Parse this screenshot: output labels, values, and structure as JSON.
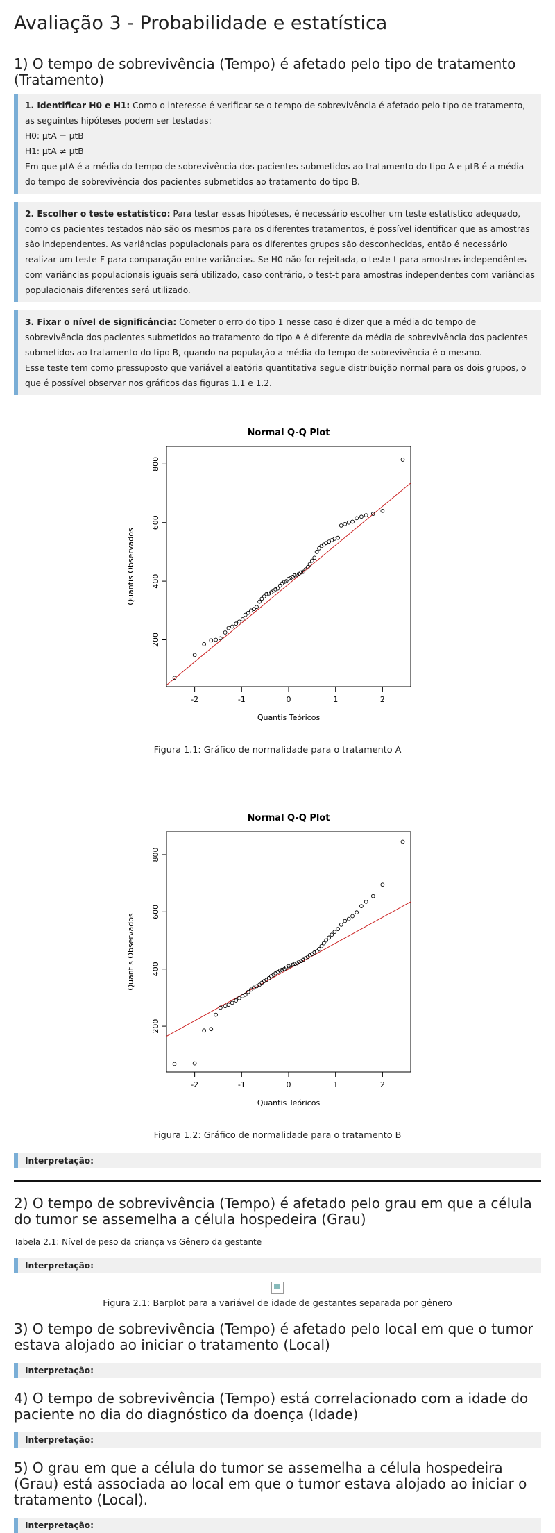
{
  "page_title": "Avaliação 3 - Probabilidade e estatística",
  "sections": {
    "s1": {
      "heading": "1) O tempo de sobrevivência (Tempo) é afetado pelo tipo de tratamento (Tratamento)",
      "box1": {
        "label": "1. Identificar H0 e H1:",
        "text1": " Como o interesse é verificar se o tempo de sobrevivência é afetado pelo tipo de tratamento, as seguintes hipóteses podem ser testadas:",
        "h0": "H0: μtA = μtB",
        "h1": "H1: μtA ≠ μtB",
        "text2": "Em que μtA é a média do tempo de sobrevivência dos pacientes submetidos ao tratamento do tipo A e μtB é a média do tempo de sobrevivência dos pacientes submetidos ao tratamento do tipo B."
      },
      "box2": {
        "label": "2. Escolher o teste estatístico:",
        "text": " Para testar essas hipóteses, é necessário escolher um teste estatístico adequado, como os pacientes testados não são os mesmos para os diferentes tratamentos, é possível identificar que as amostras são independentes. As variâncias populacionais para os diferentes grupos são desconhecidas, então é necessário realizar um teste-F para comparação entre variâncias. Se H0 não for rejeitada, o teste-t para amostras independêntes com variâncias populacionais iguais será utilizado, caso contrário, o test-t para amostras independentes com variâncias populacionais diferentes será utilizado."
      },
      "box3": {
        "label": "3. Fixar o nível de significância:",
        "text1": " Cometer o erro do tipo 1 nesse caso é dizer que a média do tempo de sobrevivência dos pacientes submetidos ao tratamento do tipo A é diferente da média de sobrevivência dos pacientes submetidos ao tratamento do tipo B, quando na população a média do tempo de sobrevivência é o mesmo.",
        "text2": "Esse teste tem como pressuposto que variável aleatória quantitativa segue distribuição normal para os dois grupos, o que é possível observar nos gráficos das figuras 1.1 e 1.2."
      },
      "fig1_caption": "Figura 1.1: Gráfico de normalidade para o tratamento A",
      "fig2_caption": "Figura 1.2: Gráfico de normalidade para o tratamento B",
      "interp": "Interpretação:"
    },
    "s2": {
      "heading": "2) O tempo de sobrevivência (Tempo) é afetado pelo grau em que a célula do tumor se assemelha a célula hospedeira (Grau)",
      "table_caption": "Tabela 2.1: Nível de peso da criança vs Gênero da gestante",
      "interp": "Interpretação:",
      "fig_caption": "Figura 2.1: Barplot para a variável de idade de gestantes separada por gênero"
    },
    "s3": {
      "heading": "3) O tempo de sobrevivência (Tempo) é afetado pelo local em que o tumor estava alojado ao iniciar o tratamento (Local)",
      "interp": "Interpretação:"
    },
    "s4": {
      "heading": "4) O tempo de sobrevivência (Tempo) está correlacionado com a idade do paciente no dia do diagnóstico da doença (Idade)",
      "interp": "Interpretação:"
    },
    "s5": {
      "heading": "5) O grau em que a célula do tumor se assemelha a célula hospedeira (Grau) está associada ao local em que o tumor estava alojado ao iniciar o tratamento (Local).",
      "interp": "Interpretação:"
    }
  },
  "colors": {
    "accent_bar": "#7aaed6",
    "box_bg": "#f0f0f0",
    "qq_line": "#cc2222"
  },
  "chart_data": [
    {
      "type": "scatter",
      "title": "Normal Q-Q Plot",
      "xlabel": "Quantis Teóricos",
      "ylabel": "Quantis Observados",
      "xlim": [
        -2.6,
        2.6
      ],
      "ylim": [
        40,
        860
      ],
      "x_ticks": [
        -2,
        -1,
        0,
        1,
        2
      ],
      "y_ticks": [
        200,
        400,
        600,
        800
      ],
      "x_tick_labels": [
        "-2",
        "-1",
        "0",
        "1",
        "2"
      ],
      "y_tick_labels": [
        "200",
        "400",
        "600",
        "800"
      ],
      "line": {
        "x": [
          -2.6,
          2.6
        ],
        "y": [
          45,
          735
        ]
      },
      "points": {
        "x": [
          -2.43,
          -2.0,
          -1.8,
          -1.65,
          -1.55,
          -1.45,
          -1.35,
          -1.28,
          -1.2,
          -1.12,
          -1.05,
          -0.98,
          -0.92,
          -0.86,
          -0.8,
          -0.74,
          -0.68,
          -0.62,
          -0.57,
          -0.52,
          -0.47,
          -0.42,
          -0.37,
          -0.32,
          -0.28,
          -0.23,
          -0.18,
          -0.14,
          -0.09,
          -0.05,
          0.0,
          0.04,
          0.09,
          0.13,
          0.18,
          0.22,
          0.27,
          0.31,
          0.36,
          0.41,
          0.45,
          0.5,
          0.55,
          0.6,
          0.65,
          0.7,
          0.75,
          0.8,
          0.86,
          0.92,
          0.98,
          1.05,
          1.12,
          1.2,
          1.28,
          1.36,
          1.45,
          1.55,
          1.65,
          1.8,
          2.0,
          2.43
        ],
        "y": [
          70,
          148,
          185,
          198,
          200,
          205,
          225,
          240,
          245,
          255,
          262,
          270,
          285,
          292,
          300,
          305,
          312,
          330,
          340,
          348,
          356,
          358,
          362,
          368,
          372,
          375,
          385,
          392,
          398,
          400,
          408,
          410,
          415,
          420,
          422,
          425,
          430,
          432,
          440,
          448,
          458,
          470,
          480,
          500,
          512,
          520,
          525,
          530,
          535,
          540,
          545,
          548,
          590,
          595,
          600,
          603,
          615,
          620,
          625,
          630,
          640,
          815
        ]
      },
      "caption": "Figura 1.1: Gráfico de normalidade para o tratamento A"
    },
    {
      "type": "scatter",
      "title": "Normal Q-Q Plot",
      "xlabel": "Quantis Teóricos",
      "ylabel": "Quantis Observados",
      "xlim": [
        -2.6,
        2.6
      ],
      "ylim": [
        40,
        880
      ],
      "x_ticks": [
        -2,
        -1,
        0,
        1,
        2
      ],
      "y_ticks": [
        200,
        400,
        600,
        800
      ],
      "x_tick_labels": [
        "-2",
        "-1",
        "0",
        "1",
        "2"
      ],
      "y_tick_labels": [
        "200",
        "400",
        "600",
        "800"
      ],
      "line": {
        "x": [
          -2.6,
          2.6
        ],
        "y": [
          165,
          635
        ]
      },
      "points": {
        "x": [
          -2.43,
          -2.0,
          -1.8,
          -1.65,
          -1.55,
          -1.45,
          -1.35,
          -1.28,
          -1.2,
          -1.12,
          -1.05,
          -0.98,
          -0.92,
          -0.86,
          -0.8,
          -0.74,
          -0.68,
          -0.62,
          -0.57,
          -0.52,
          -0.47,
          -0.42,
          -0.37,
          -0.32,
          -0.28,
          -0.23,
          -0.18,
          -0.14,
          -0.09,
          -0.05,
          0.0,
          0.04,
          0.09,
          0.13,
          0.18,
          0.22,
          0.27,
          0.31,
          0.36,
          0.41,
          0.45,
          0.5,
          0.55,
          0.6,
          0.65,
          0.7,
          0.75,
          0.8,
          0.86,
          0.92,
          0.98,
          1.05,
          1.12,
          1.2,
          1.28,
          1.36,
          1.45,
          1.55,
          1.65,
          1.8,
          2.0,
          2.43
        ],
        "y": [
          68,
          70,
          185,
          190,
          240,
          265,
          270,
          275,
          282,
          290,
          298,
          305,
          310,
          320,
          328,
          335,
          340,
          345,
          352,
          358,
          362,
          368,
          375,
          380,
          385,
          390,
          395,
          398,
          400,
          405,
          410,
          412,
          415,
          418,
          420,
          425,
          428,
          432,
          438,
          442,
          448,
          452,
          458,
          462,
          470,
          480,
          490,
          500,
          510,
          520,
          530,
          540,
          555,
          568,
          575,
          585,
          598,
          620,
          635,
          655,
          695,
          845
        ]
      },
      "caption": "Figura 1.2: Gráfico de normalidade para o tratamento B"
    }
  ]
}
